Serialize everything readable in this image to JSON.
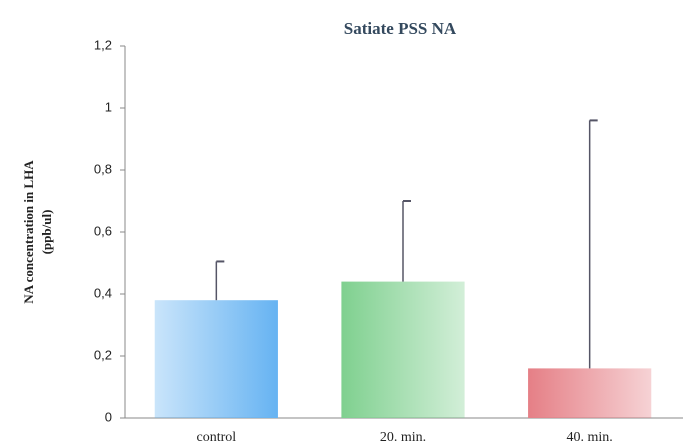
{
  "chart_data": {
    "type": "bar",
    "title": "Satiate PSS NA",
    "ylabel": [
      "NA concentration in LHA",
      "(ppb/ul)"
    ],
    "categories": [
      "control",
      "20. min.",
      "40. min."
    ],
    "values": [
      0.38,
      0.44,
      0.16
    ],
    "errors": [
      0.125,
      0.26,
      0.8
    ],
    "colors": [
      "#66b3f2",
      "#7fd08f",
      "#e57f86"
    ],
    "ylim": [
      0,
      1.2
    ],
    "yticks": [
      0,
      {
        "value": 0.2,
        "label": "0,2"
      },
      {
        "value": 0.4,
        "label": "0,4"
      },
      {
        "value": 0.6,
        "label": "0,6"
      },
      {
        "value": 0.8,
        "label": "0,8"
      },
      1,
      {
        "value": 1.2,
        "label": "1,2"
      }
    ]
  }
}
